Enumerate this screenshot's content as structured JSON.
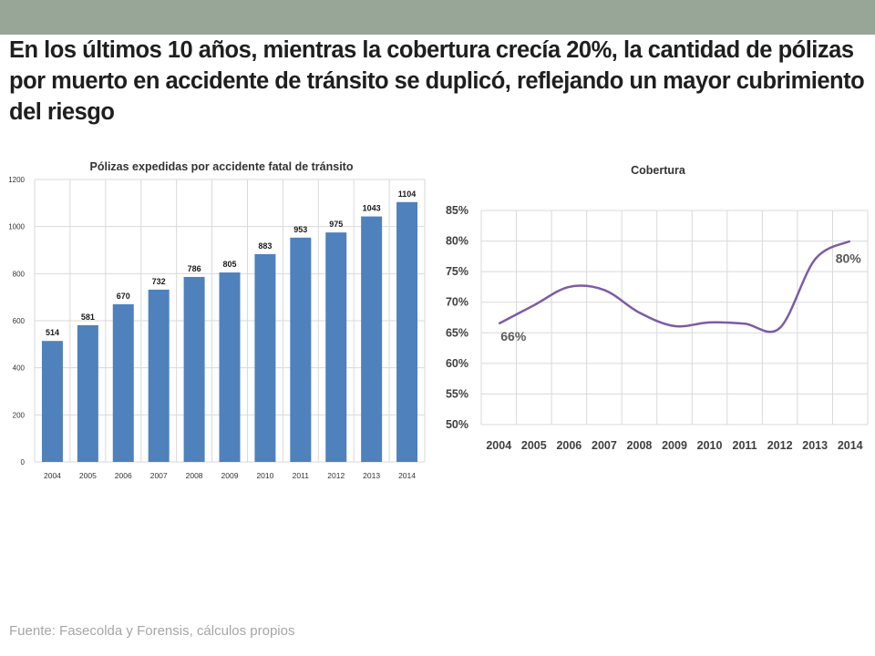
{
  "slide": {
    "headline": "En los últimos 10 años, mientras la cobertura crecía 20%, la cantidad de pólizas por muerto en accidente de tránsito se duplicó, reflejando un mayor cubrimiento del riesgo",
    "source": "Fuente: Fasecolda y Forensis, cálculos propios"
  },
  "colors": {
    "top_band": "#97a697",
    "bar": "#4f81bd",
    "line": "#7d5ba6",
    "grid": "#d9d9d9"
  },
  "chart_data": [
    {
      "type": "bar",
      "title": "Pólizas expedidas por accidente fatal de tránsito",
      "categories": [
        "2004",
        "2005",
        "2006",
        "2007",
        "2008",
        "2009",
        "2010",
        "2011",
        "2012",
        "2013",
        "2014"
      ],
      "values": [
        514,
        581,
        670,
        732,
        786,
        805,
        883,
        953,
        975,
        1043,
        1104
      ],
      "ylim": [
        0,
        1200
      ],
      "yticks": [
        0,
        200,
        400,
        600,
        800,
        1000,
        1200
      ],
      "grid": true,
      "data_labels": true
    },
    {
      "type": "line",
      "title": "Cobertura",
      "x": [
        "2004",
        "2005",
        "2006",
        "2007",
        "2008",
        "2009",
        "2010",
        "2011",
        "2012",
        "2013",
        "2014"
      ],
      "values": [
        66.5,
        69.5,
        72.5,
        72.0,
        68.3,
        66.1,
        66.7,
        66.5,
        65.8,
        77.0,
        80.0
      ],
      "ylim": [
        50,
        85
      ],
      "yticks": [
        "50%",
        "55%",
        "60%",
        "65%",
        "70%",
        "75%",
        "80%",
        "85%"
      ],
      "annotations": [
        {
          "x": "2004",
          "text": "66%"
        },
        {
          "x": "2014",
          "text": "80%"
        }
      ],
      "grid": true
    }
  ]
}
